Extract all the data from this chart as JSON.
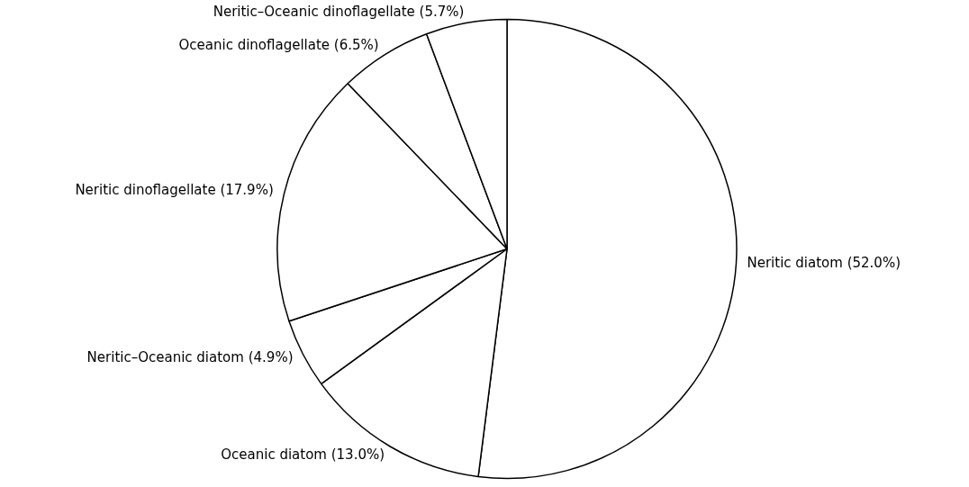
{
  "chart_data": {
    "type": "pie",
    "categories": [
      "Neritic diatom",
      "Oceanic diatom",
      "Neritic–Oceanic diatom",
      "Neritic dinoflagellate",
      "Oceanic dinoflagellate",
      "Neritic–Oceanic dinoflagellate"
    ],
    "values": [
      52.0,
      13.0,
      4.9,
      17.9,
      6.5,
      5.7
    ],
    "value_labels": [
      "(52.0%)",
      "(13.0%)",
      "(4.9%)",
      "(17.9%)",
      "(6.5%)",
      "(5.7%)"
    ],
    "colors": [
      "#ffffff",
      "#ffffff",
      "#ffffff",
      "#ffffff",
      "#ffffff",
      "#ffffff"
    ],
    "legend": false
  }
}
